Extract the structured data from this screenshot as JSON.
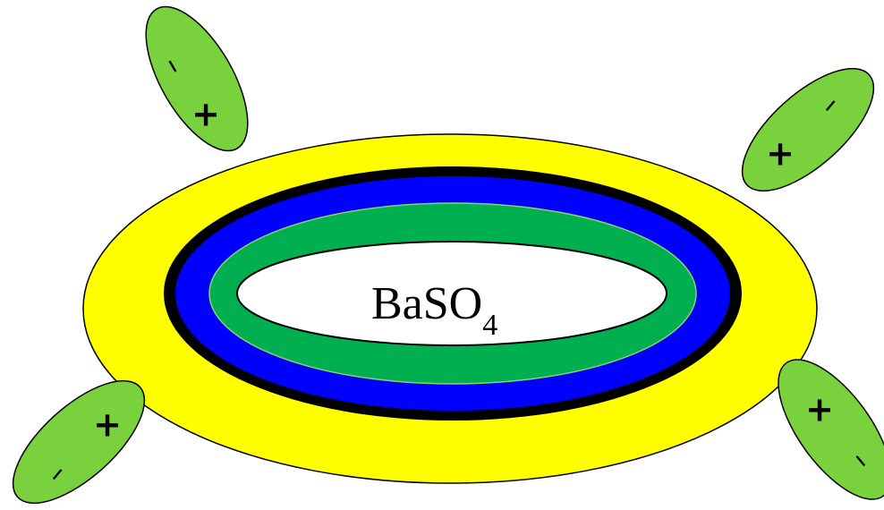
{
  "core": {
    "label_main": "BaSO",
    "label_subscript": "4"
  },
  "colors": {
    "background": "#ffffff",
    "outer_layer": "#ffff00",
    "black_ring": "#000000",
    "blue_ring": "#0000ff",
    "green_ring": "#00b050",
    "dipole_fill": "#7ad13e",
    "core_fill": "#ffffff",
    "outline": "#000000"
  },
  "dipoles": [
    {
      "name": "dipole-top-left",
      "positive_sign": "+",
      "negative_sign": "–"
    },
    {
      "name": "dipole-top-right",
      "positive_sign": "+",
      "negative_sign": "–"
    },
    {
      "name": "dipole-bottom-left",
      "positive_sign": "+",
      "negative_sign": "–"
    },
    {
      "name": "dipole-bottom-right",
      "positive_sign": "+",
      "negative_sign": "–"
    }
  ]
}
